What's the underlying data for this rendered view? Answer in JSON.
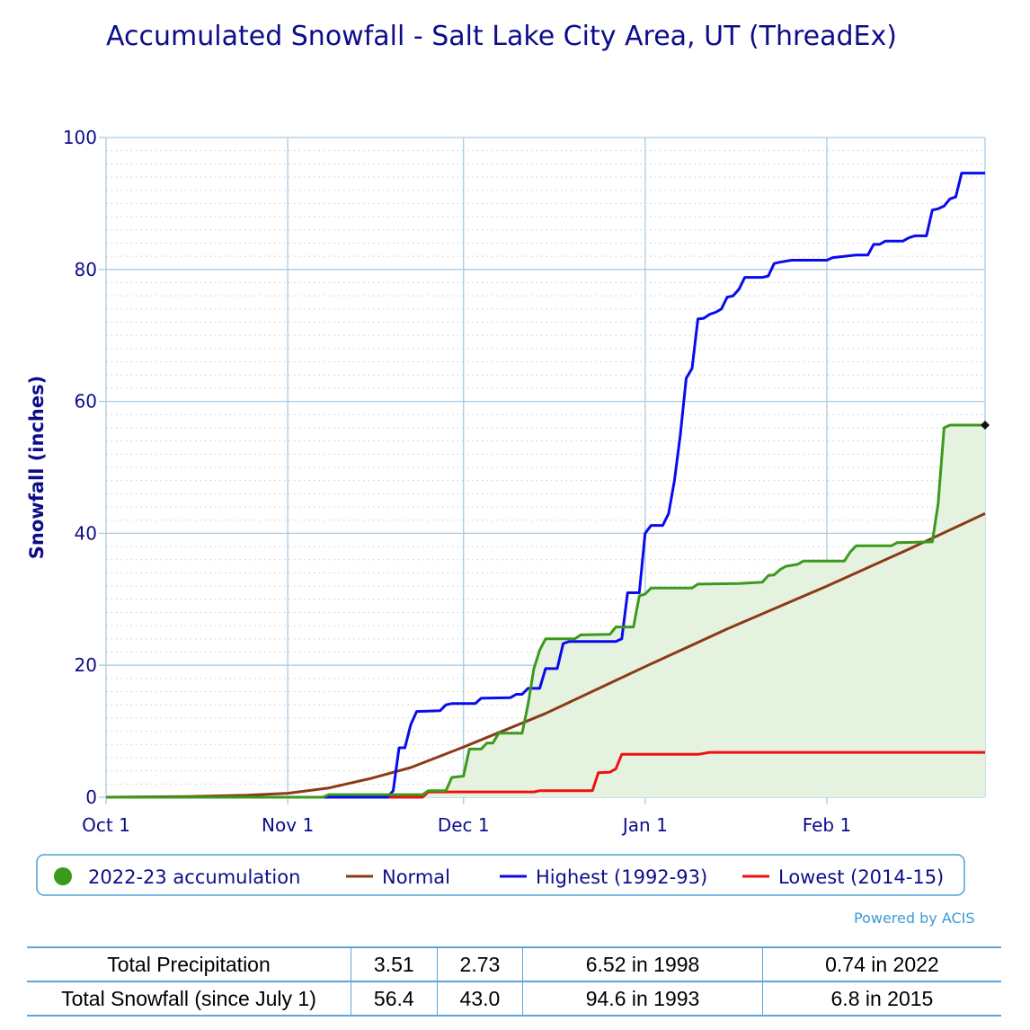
{
  "chart_data": {
    "type": "line",
    "title": "Accumulated Snowfall - Salt Lake City Area, UT (ThreadEx)",
    "ylabel": "Snowfall (inches)",
    "xlabel": "",
    "ylim": [
      0,
      100
    ],
    "yticks": [
      0,
      20,
      40,
      60,
      80,
      100
    ],
    "xlim": [
      "2022-10-01",
      "2023-02-28"
    ],
    "xticks": [
      {
        "label": "Oct 1",
        "date": "2022-10-01"
      },
      {
        "label": "Nov 1",
        "date": "2022-11-01"
      },
      {
        "label": "Dec 1",
        "date": "2022-12-01"
      },
      {
        "label": "Jan 1",
        "date": "2023-01-01"
      },
      {
        "label": "Feb 1",
        "date": "2023-02-01"
      }
    ],
    "grid": true,
    "legend_position": "bottom",
    "series": [
      {
        "name": "2022-23 accumulation",
        "color": "#3b9a1c",
        "fill": "#e6f2e0",
        "marker": "circle",
        "points": [
          [
            "2022-10-01",
            0
          ],
          [
            "2022-11-07",
            0
          ],
          [
            "2022-11-08",
            0.4
          ],
          [
            "2022-11-24",
            0.4
          ],
          [
            "2022-11-25",
            1.0
          ],
          [
            "2022-11-28",
            1.0
          ],
          [
            "2022-11-29",
            3.0
          ],
          [
            "2022-12-01",
            3.2
          ],
          [
            "2022-12-02",
            7.3
          ],
          [
            "2022-12-04",
            7.3
          ],
          [
            "2022-12-05",
            8.2
          ],
          [
            "2022-12-06",
            8.2
          ],
          [
            "2022-12-07",
            9.7
          ],
          [
            "2022-12-11",
            9.7
          ],
          [
            "2022-12-12",
            14.0
          ],
          [
            "2022-12-13",
            19.5
          ],
          [
            "2022-12-14",
            22.3
          ],
          [
            "2022-12-15",
            24.0
          ],
          [
            "2022-12-20",
            24.0
          ],
          [
            "2022-12-21",
            24.6
          ],
          [
            "2022-12-26",
            24.7
          ],
          [
            "2022-12-27",
            25.8
          ],
          [
            "2022-12-30",
            25.8
          ],
          [
            "2022-12-31",
            30.5
          ],
          [
            "2023-01-01",
            30.8
          ],
          [
            "2023-01-02",
            31.7
          ],
          [
            "2023-01-09",
            31.7
          ],
          [
            "2023-01-10",
            32.3
          ],
          [
            "2023-01-17",
            32.4
          ],
          [
            "2023-01-21",
            32.6
          ],
          [
            "2023-01-22",
            33.6
          ],
          [
            "2023-01-23",
            33.7
          ],
          [
            "2023-01-24",
            34.5
          ],
          [
            "2023-01-25",
            35.0
          ],
          [
            "2023-01-27",
            35.3
          ],
          [
            "2023-01-28",
            35.8
          ],
          [
            "2023-02-04",
            35.8
          ],
          [
            "2023-02-05",
            37.2
          ],
          [
            "2023-02-06",
            38.1
          ],
          [
            "2023-02-12",
            38.1
          ],
          [
            "2023-02-13",
            38.6
          ],
          [
            "2023-02-19",
            38.7
          ],
          [
            "2023-02-20",
            44.5
          ],
          [
            "2023-02-21",
            56.0
          ],
          [
            "2023-02-22",
            56.4
          ],
          [
            "2023-02-28",
            56.4
          ]
        ]
      },
      {
        "name": "Normal",
        "color": "#8b3a18",
        "points": [
          [
            "2022-10-01",
            0
          ],
          [
            "2022-10-15",
            0.1
          ],
          [
            "2022-10-25",
            0.3
          ],
          [
            "2022-11-01",
            0.6
          ],
          [
            "2022-11-08",
            1.4
          ],
          [
            "2022-11-15",
            2.8
          ],
          [
            "2022-11-22",
            4.5
          ],
          [
            "2022-12-01",
            7.6
          ],
          [
            "2022-12-15",
            12.7
          ],
          [
            "2023-01-01",
            19.8
          ],
          [
            "2023-01-15",
            25.5
          ],
          [
            "2023-02-01",
            32.0
          ],
          [
            "2023-02-15",
            37.6
          ],
          [
            "2023-02-28",
            43.0
          ]
        ]
      },
      {
        "name": "Highest (1992-93)",
        "color": "#0a0aee",
        "points": [
          [
            "2022-10-01",
            0
          ],
          [
            "2022-11-18",
            0
          ],
          [
            "2022-11-19",
            1.0
          ],
          [
            "2022-11-20",
            7.5
          ],
          [
            "2022-11-21",
            7.5
          ],
          [
            "2022-11-22",
            11.0
          ],
          [
            "2022-11-23",
            13.0
          ],
          [
            "2022-11-27",
            13.1
          ],
          [
            "2022-11-28",
            14.0
          ],
          [
            "2022-11-29",
            14.2
          ],
          [
            "2022-12-03",
            14.2
          ],
          [
            "2022-12-04",
            15.0
          ],
          [
            "2022-12-09",
            15.1
          ],
          [
            "2022-12-10",
            15.6
          ],
          [
            "2022-12-11",
            15.6
          ],
          [
            "2022-12-12",
            16.5
          ],
          [
            "2022-12-14",
            16.5
          ],
          [
            "2022-12-15",
            19.5
          ],
          [
            "2022-12-17",
            19.5
          ],
          [
            "2022-12-18",
            23.3
          ],
          [
            "2022-12-19",
            23.6
          ],
          [
            "2022-12-27",
            23.6
          ],
          [
            "2022-12-28",
            24.0
          ],
          [
            "2022-12-29",
            31.0
          ],
          [
            "2022-12-31",
            31.0
          ],
          [
            "2023-01-01",
            40.0
          ],
          [
            "2023-01-02",
            41.2
          ],
          [
            "2023-01-04",
            41.2
          ],
          [
            "2023-01-05",
            43.0
          ],
          [
            "2023-01-06",
            48.0
          ],
          [
            "2023-01-07",
            55.0
          ],
          [
            "2023-01-08",
            63.5
          ],
          [
            "2023-01-09",
            65.0
          ],
          [
            "2023-01-10",
            72.5
          ],
          [
            "2023-01-11",
            72.6
          ],
          [
            "2023-01-12",
            73.2
          ],
          [
            "2023-01-13",
            73.5
          ],
          [
            "2023-01-14",
            74.0
          ],
          [
            "2023-01-15",
            75.8
          ],
          [
            "2023-01-16",
            76.0
          ],
          [
            "2023-01-17",
            77.0
          ],
          [
            "2023-01-18",
            78.8
          ],
          [
            "2023-01-21",
            78.8
          ],
          [
            "2023-01-22",
            79.0
          ],
          [
            "2023-01-23",
            80.9
          ],
          [
            "2023-01-24",
            81.1
          ],
          [
            "2023-01-26",
            81.4
          ],
          [
            "2023-02-01",
            81.4
          ],
          [
            "2023-02-02",
            81.8
          ],
          [
            "2023-02-06",
            82.2
          ],
          [
            "2023-02-08",
            82.2
          ],
          [
            "2023-02-09",
            83.8
          ],
          [
            "2023-02-10",
            83.8
          ],
          [
            "2023-02-11",
            84.3
          ],
          [
            "2023-02-14",
            84.3
          ],
          [
            "2023-02-15",
            84.8
          ],
          [
            "2023-02-16",
            85.1
          ],
          [
            "2023-02-18",
            85.1
          ],
          [
            "2023-02-19",
            89.0
          ],
          [
            "2023-02-20",
            89.2
          ],
          [
            "2023-02-21",
            89.6
          ],
          [
            "2023-02-22",
            90.7
          ],
          [
            "2023-02-23",
            91.0
          ],
          [
            "2023-02-24",
            94.6
          ],
          [
            "2023-02-28",
            94.6
          ]
        ]
      },
      {
        "name": "Lowest (2014-15)",
        "color": "#ee1111",
        "points": [
          [
            "2022-10-01",
            0
          ],
          [
            "2022-11-24",
            0
          ],
          [
            "2022-11-25",
            0.8
          ],
          [
            "2022-12-13",
            0.8
          ],
          [
            "2022-12-14",
            1.0
          ],
          [
            "2022-12-23",
            1.0
          ],
          [
            "2022-12-24",
            3.7
          ],
          [
            "2022-12-26",
            3.8
          ],
          [
            "2022-12-27",
            4.3
          ],
          [
            "2022-12-28",
            6.5
          ],
          [
            "2023-01-10",
            6.5
          ],
          [
            "2023-01-12",
            6.8
          ],
          [
            "2023-02-28",
            6.8
          ]
        ]
      }
    ]
  },
  "legend": [
    {
      "label": "2022-23 accumulation",
      "color": "#3b9a1c",
      "symbol": "circle"
    },
    {
      "label": "Normal",
      "color": "#8b3a18",
      "symbol": "line"
    },
    {
      "label": "Highest (1992-93)",
      "color": "#0a0aee",
      "symbol": "line"
    },
    {
      "label": "Lowest (2014-15)",
      "color": "#ee1111",
      "symbol": "line"
    }
  ],
  "credit": "Powered by ACIS",
  "summary_table": {
    "rows": [
      {
        "label": "Total Precipitation",
        "current": "3.51",
        "normal": "2.73",
        "highest": "6.52 in 1998",
        "lowest": "0.74 in 2022"
      },
      {
        "label": "Total Snowfall (since July 1)",
        "current": "56.4",
        "normal": "43.0",
        "highest": "94.6 in 1993",
        "lowest": "6.8 in 2015"
      }
    ]
  }
}
